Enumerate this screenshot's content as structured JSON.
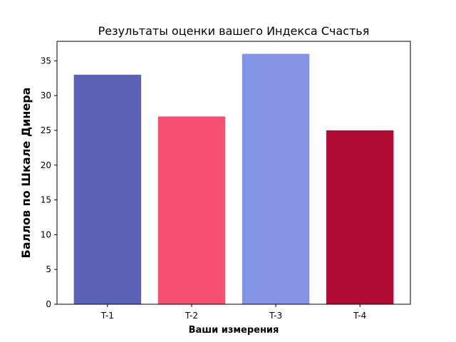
{
  "chart_data": {
    "type": "bar",
    "title": "Результаты оценки вашего Индекса Счастья",
    "xlabel": "Ваши измерения",
    "ylabel": "Баллов по Шкале Динера",
    "categories": [
      "T-1",
      "T-2",
      "T-3",
      "T-4"
    ],
    "values": [
      33,
      27,
      36,
      25
    ],
    "colors": [
      "#5b62b8",
      "#f75072",
      "#8593e6",
      "#b00b35"
    ],
    "ylim": [
      0,
      37.8
    ],
    "yticks": [
      0,
      5,
      10,
      15,
      20,
      25,
      30,
      35
    ],
    "grid": false,
    "legend": "none"
  }
}
